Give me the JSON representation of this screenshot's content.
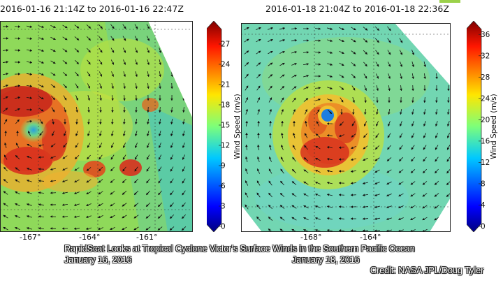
{
  "panels": [
    {
      "title": "2016-01-16 21:14Z to 2016-01-16 22:47Z",
      "lon_labels": [
        "-167°",
        "-164°",
        "-161°"
      ],
      "colorbar": {
        "label": "Wind Speed (m/s)",
        "ticks": [
          "0",
          "3",
          "6",
          "9",
          "12",
          "15",
          "18",
          "21",
          "24",
          "27"
        ],
        "max": 30
      }
    },
    {
      "title": "2016-01-18 21:04Z to 2016-01-18 22:36Z",
      "lon_labels": [
        "-168°",
        "-164°"
      ],
      "colorbar": {
        "label": "Wind Speed (m/s)",
        "ticks": [
          "0",
          "4",
          "8",
          "12",
          "16",
          "20",
          "24",
          "28",
          "32",
          "36"
        ],
        "max": 38
      }
    }
  ],
  "caption": {
    "title": "RapidScat Looks at Tropical Cyclone Victor's Surface Winds in the Southern Pacific Ocean",
    "date_left": "January 16, 2016",
    "date_right": "January 18, 2016",
    "credit": "Credit: NASA JPL/Doug Tyler"
  },
  "chart_data": [
    {
      "type": "heatmap",
      "title": "2016-01-16 21:14Z to 2016-01-16 22:47Z",
      "xlabel": "",
      "ylabel": "",
      "x_ticks": [
        "-167°",
        "-164°",
        "-161°"
      ],
      "colorbar_label": "Wind Speed (m/s)",
      "colorbar_range": [
        0,
        30
      ],
      "colormap": "jet",
      "cyclone_center_lon": -166.8,
      "background_wind_speed": 15,
      "max_wind_speed": 28,
      "grid": true
    },
    {
      "type": "heatmap",
      "title": "2016-01-18 21:04Z to 2016-01-18 22:36Z",
      "xlabel": "",
      "ylabel": "",
      "x_ticks": [
        "-168°",
        "-164°"
      ],
      "colorbar_label": "Wind Speed (m/s)",
      "colorbar_range": [
        0,
        38
      ],
      "colormap": "jet",
      "cyclone_center_lon": -166.8,
      "background_wind_speed": 15,
      "max_wind_speed": 30,
      "grid": true
    }
  ]
}
